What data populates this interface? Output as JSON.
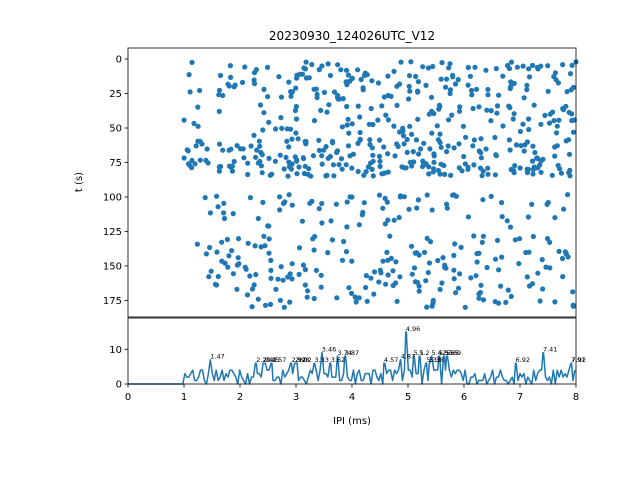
{
  "chart_data": [
    {
      "type": "scatter",
      "title": "20230930_124026UTC_V12",
      "xlabel": "",
      "ylabel": "t (s)",
      "xlim": [
        0,
        8
      ],
      "ylim": [
        187,
        -8
      ],
      "y_inverted": true,
      "yticks": [
        0,
        25,
        50,
        75,
        100,
        125,
        150,
        175
      ],
      "marker_color": "#1f77b4",
      "grid": false,
      "bands": [
        {
          "t_range": [
            2,
            30
          ],
          "ipi_range": [
            1.0,
            8.0
          ],
          "n": 150
        },
        {
          "t_range": [
            33,
            58
          ],
          "ipi_range": [
            1.0,
            8.0
          ],
          "n": 100
        },
        {
          "t_range": [
            58,
            85
          ],
          "ipi_range": [
            1.0,
            8.0
          ],
          "n": 230
        },
        {
          "t_range": [
            98,
            122
          ],
          "ipi_range": [
            1.3,
            8.0
          ],
          "n": 70
        },
        {
          "t_range": [
            128,
            180
          ],
          "ipi_range": [
            1.2,
            8.0
          ],
          "n": 190
        }
      ]
    },
    {
      "type": "line",
      "title": "",
      "xlabel": "IPI (ms)",
      "ylabel": "",
      "xlim": [
        0,
        8
      ],
      "ylim": [
        0,
        19
      ],
      "xticks": [
        0,
        1,
        2,
        3,
        4,
        5,
        6,
        7,
        8
      ],
      "yticks": [
        0,
        10
      ],
      "line_color": "#1f77b4",
      "grid": false,
      "peaks": [
        {
          "x": 1.47,
          "y": 7,
          "label": "1.47"
        },
        {
          "x": 2.29,
          "y": 6,
          "label": "2.29"
        },
        {
          "x": 2.41,
          "y": 6,
          "label": "2.41"
        },
        {
          "x": 2.45,
          "y": 6,
          "label": "2.45"
        },
        {
          "x": 2.57,
          "y": 6,
          "label": "2.57"
        },
        {
          "x": 2.92,
          "y": 6,
          "label": "2.92"
        },
        {
          "x": 2.98,
          "y": 6,
          "label": "2.98"
        },
        {
          "x": 3.02,
          "y": 6,
          "label": "3.02"
        },
        {
          "x": 3.33,
          "y": 6,
          "label": "3.33"
        },
        {
          "x": 3.46,
          "y": 9,
          "label": "3.46"
        },
        {
          "x": 3.62,
          "y": 6,
          "label": "3.62"
        },
        {
          "x": 3.74,
          "y": 8,
          "label": "3.74"
        },
        {
          "x": 3.87,
          "y": 8,
          "label": "3.87"
        },
        {
          "x": 4.57,
          "y": 6,
          "label": "4.57"
        },
        {
          "x": 4.87,
          "y": 7,
          "label": "4.87"
        },
        {
          "x": 4.96,
          "y": 15,
          "label": "4.96"
        },
        {
          "x": 5.1,
          "y": 8,
          "label": "5.1"
        },
        {
          "x": 5.2,
          "y": 8,
          "label": "5.2"
        },
        {
          "x": 5.33,
          "y": 6,
          "label": "5.33"
        },
        {
          "x": 5.38,
          "y": 6,
          "label": "5.38"
        },
        {
          "x": 5.42,
          "y": 8,
          "label": "5.42"
        },
        {
          "x": 5.55,
          "y": 8,
          "label": "5.55"
        },
        {
          "x": 5.65,
          "y": 8,
          "label": "5.65"
        },
        {
          "x": 5.69,
          "y": 8,
          "label": "5.69"
        },
        {
          "x": 6.92,
          "y": 6,
          "label": "6.92"
        },
        {
          "x": 7.41,
          "y": 9,
          "label": "7.41"
        },
        {
          "x": 7.92,
          "y": 6,
          "label": "7.92"
        },
        {
          "x": 7.91,
          "y": 6,
          "label": "7.91"
        }
      ]
    }
  ]
}
